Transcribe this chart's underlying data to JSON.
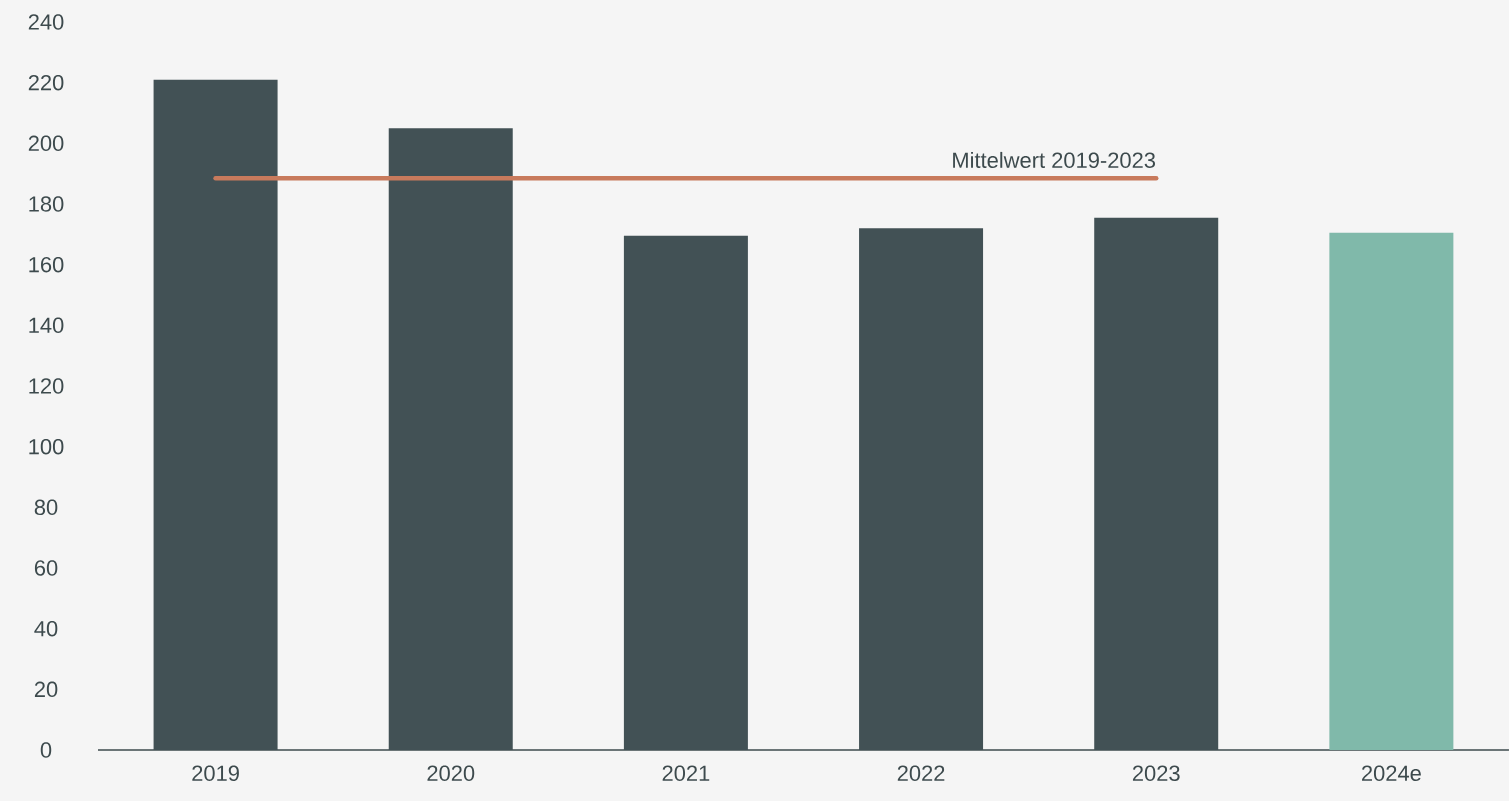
{
  "chart_data": {
    "type": "bar",
    "categories": [
      "2019",
      "2020",
      "2021",
      "2022",
      "2023",
      "2024e"
    ],
    "series": [
      {
        "colors": [
          "#425155",
          "#425155",
          "#425155",
          "#425155",
          "#425155",
          "#80b9aa"
        ],
        "values": [
          221,
          205,
          169.5,
          172,
          175.5,
          170.5
        ]
      },
      {
        "type": "line",
        "name": "Mittelwert 2019-2023",
        "color": "#c87a5c",
        "values": [
          188.5,
          188.5,
          188.5,
          188.5,
          188.5,
          null
        ]
      }
    ],
    "ylim": [
      0,
      240
    ],
    "yticks": [
      0,
      20,
      40,
      60,
      80,
      100,
      120,
      140,
      160,
      180,
      200,
      220,
      240
    ]
  }
}
